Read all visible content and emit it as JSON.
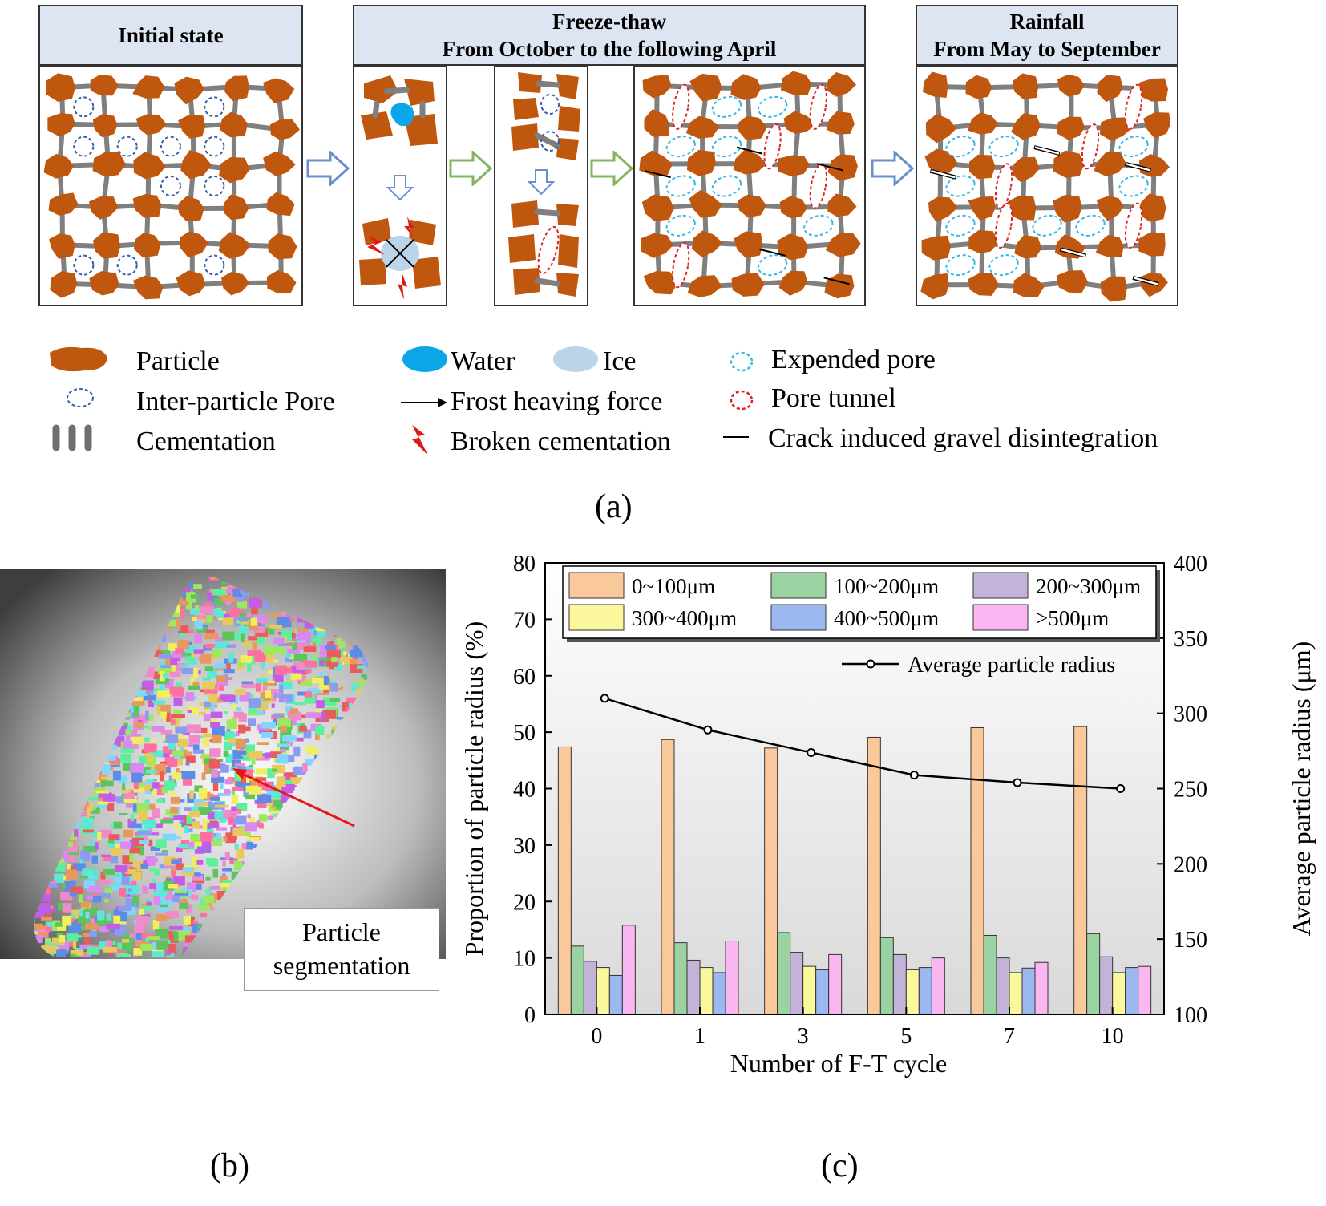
{
  "panel_a": {
    "headers": {
      "initial": "Initial state",
      "freeze_thaw_title": "Freeze-thaw",
      "freeze_thaw_period": "From October to the following April",
      "rainfall_title": "Rainfall",
      "rainfall_period": "From May to September"
    },
    "legend": {
      "particle": "Particle",
      "inter_particle_pore": "Inter-particle Pore",
      "cementation": "Cementation",
      "water": "Water",
      "ice": "Ice",
      "frost_heaving_force": "Frost heaving force",
      "broken_cementation": "Broken cementation",
      "expended_pore": "Expended pore",
      "pore_tunnel": "Pore tunnel",
      "crack": "Crack induced gravel disintegration"
    },
    "colors": {
      "particle": "#c0570f",
      "cementation": "#7f7f7f",
      "pore": "#3a5ba8",
      "water": "#0aa6e8",
      "ice": "#bcd4ea",
      "expended_pore": "#35b8e6",
      "pore_tunnel": "#e02020",
      "header_fill": "#dde4f2",
      "arrow_blue": "#8aa9db",
      "arrow_green": "#9cc27c"
    },
    "caption": "(a)"
  },
  "panel_b": {
    "label": "Particle segmentation",
    "label_line1": "Particle",
    "label_line2": "segmentation",
    "caption": "(b)"
  },
  "panel_c": {
    "caption": "(c)",
    "chart_data": {
      "type": "bar",
      "xlabel": "Number of F-T cycle",
      "ylabel": "Proportion of particle radius (%)",
      "y2label": "Average particle radius (μm)",
      "categories": [
        "0",
        "1",
        "3",
        "5",
        "7",
        "10"
      ],
      "ylim": [
        0,
        80
      ],
      "y2lim": [
        100,
        400
      ],
      "yticks": [
        "0",
        "10",
        "20",
        "30",
        "40",
        "50",
        "60",
        "70",
        "80"
      ],
      "y2ticks": [
        "100",
        "150",
        "200",
        "250",
        "300",
        "350",
        "400"
      ],
      "legend_position": "top",
      "series": [
        {
          "name": "0~100μm",
          "color": "#f9c99c",
          "values": [
            47.4,
            48.7,
            47.2,
            49.1,
            50.8,
            51.0
          ]
        },
        {
          "name": "100~200μm",
          "color": "#9ad3a1",
          "values": [
            12.1,
            12.7,
            14.5,
            13.6,
            14.0,
            14.3
          ]
        },
        {
          "name": "200~300μm",
          "color": "#c3b3d8",
          "values": [
            9.4,
            9.6,
            11.0,
            10.6,
            10.0,
            10.2
          ]
        },
        {
          "name": "300~400μm",
          "color": "#fbf79c",
          "values": [
            8.3,
            8.3,
            8.5,
            7.9,
            7.4,
            7.4
          ]
        },
        {
          "name": "400~500μm",
          "color": "#9cb8f0",
          "values": [
            6.9,
            7.4,
            7.9,
            8.3,
            8.2,
            8.3
          ]
        },
        {
          "name": ">500μm",
          "color": "#f9b6f0",
          "values": [
            15.8,
            13.0,
            10.6,
            10.0,
            9.2,
            8.5
          ]
        }
      ],
      "line": {
        "name": "Average particle radius",
        "color": "#000000",
        "values": [
          310,
          289,
          274,
          259,
          254,
          250
        ]
      }
    }
  }
}
